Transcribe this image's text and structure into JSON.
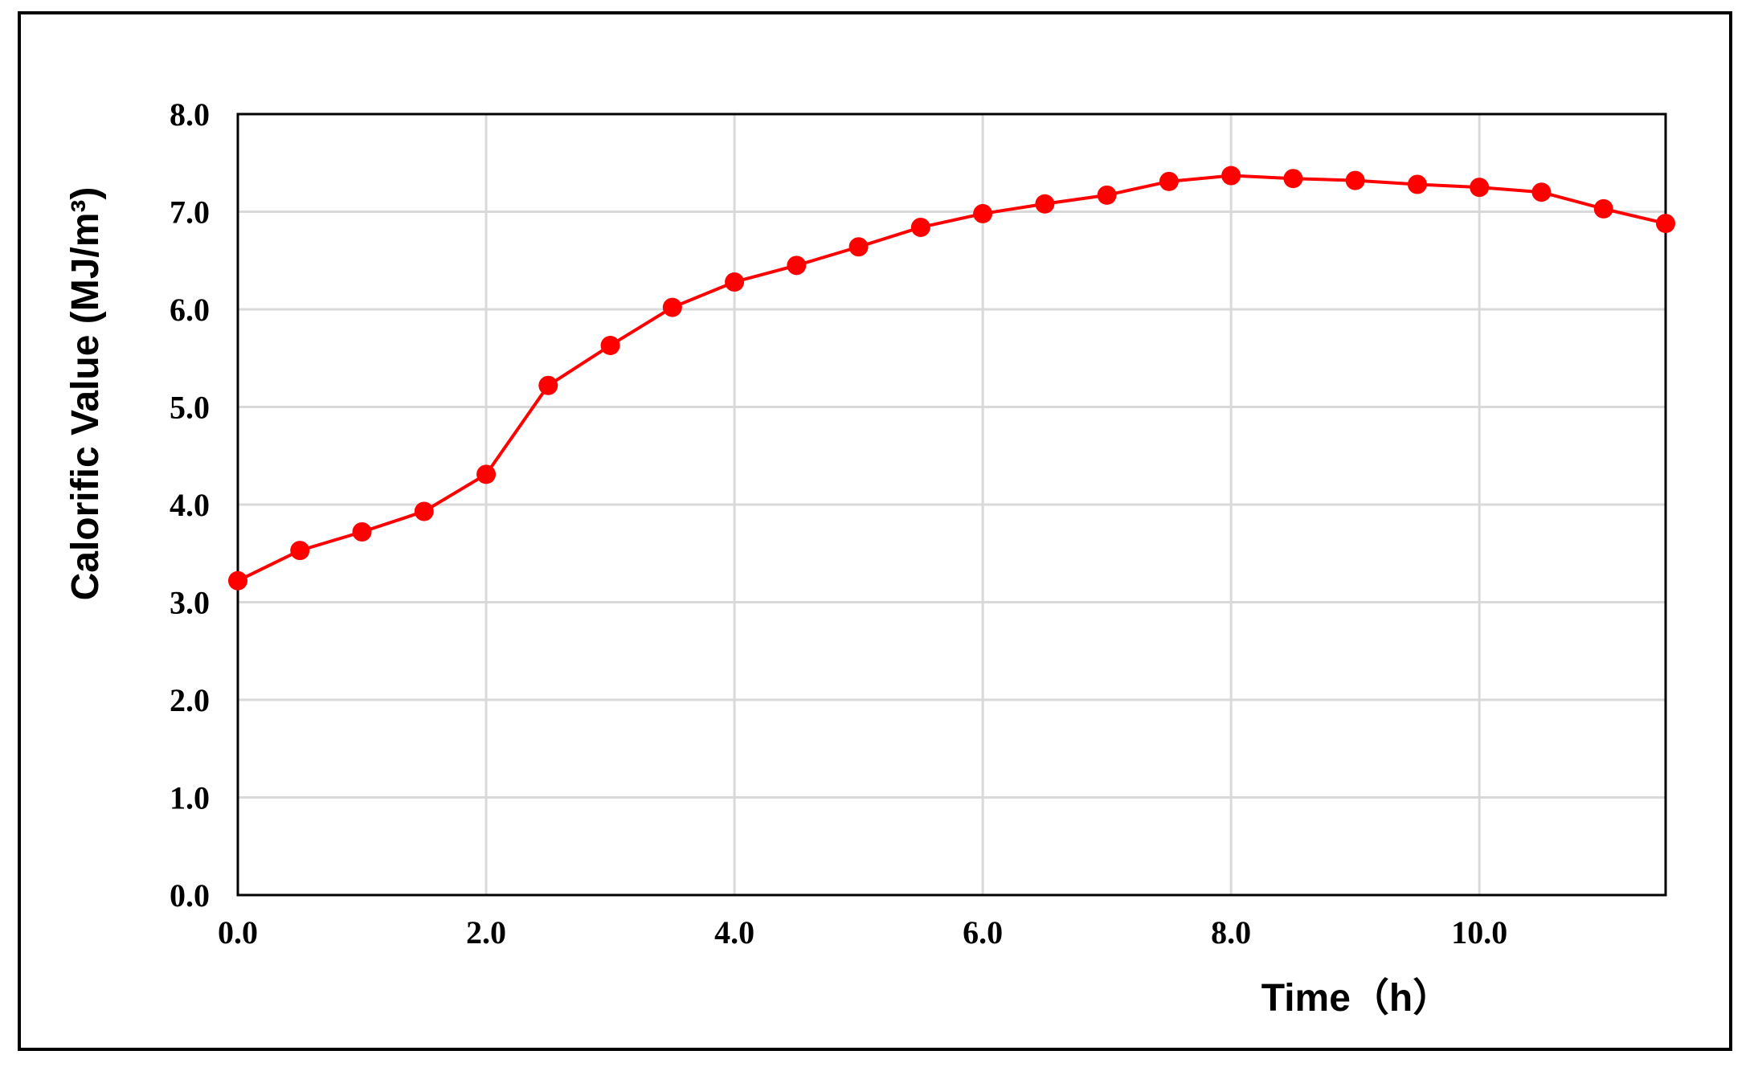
{
  "chart_data": {
    "type": "line",
    "xlabel": "Time（h）",
    "ylabel": "Calorific Value (MJ/m³)",
    "xlim": [
      0,
      11.5
    ],
    "ylim": [
      0,
      8
    ],
    "grid": true,
    "xticks": [
      "0.0",
      "2.0",
      "4.0",
      "6.0",
      "8.0",
      "10.0"
    ],
    "xtick_values": [
      0,
      2,
      4,
      6,
      8,
      10
    ],
    "yticks": [
      "0.0",
      "1.0",
      "2.0",
      "3.0",
      "4.0",
      "5.0",
      "6.0",
      "7.0",
      "8.0"
    ],
    "ytick_values": [
      0,
      1,
      2,
      3,
      4,
      5,
      6,
      7,
      8
    ],
    "color": "#ff0000",
    "series": [
      {
        "x": [
          0,
          0.5,
          1,
          1.5,
          2,
          2.5,
          3,
          3.5,
          4,
          4.5,
          5,
          5.5,
          6,
          6.5,
          7,
          7.5,
          8,
          8.5,
          9,
          9.5,
          10,
          10.5,
          11,
          11.5
        ],
        "y": [
          3.22,
          3.53,
          3.72,
          3.93,
          4.31,
          5.22,
          5.63,
          6.02,
          6.28,
          6.45,
          6.64,
          6.84,
          6.98,
          7.08,
          7.17,
          7.31,
          7.37,
          7.34,
          7.32,
          7.28,
          7.25,
          7.2,
          7.03,
          6.88
        ]
      }
    ]
  }
}
